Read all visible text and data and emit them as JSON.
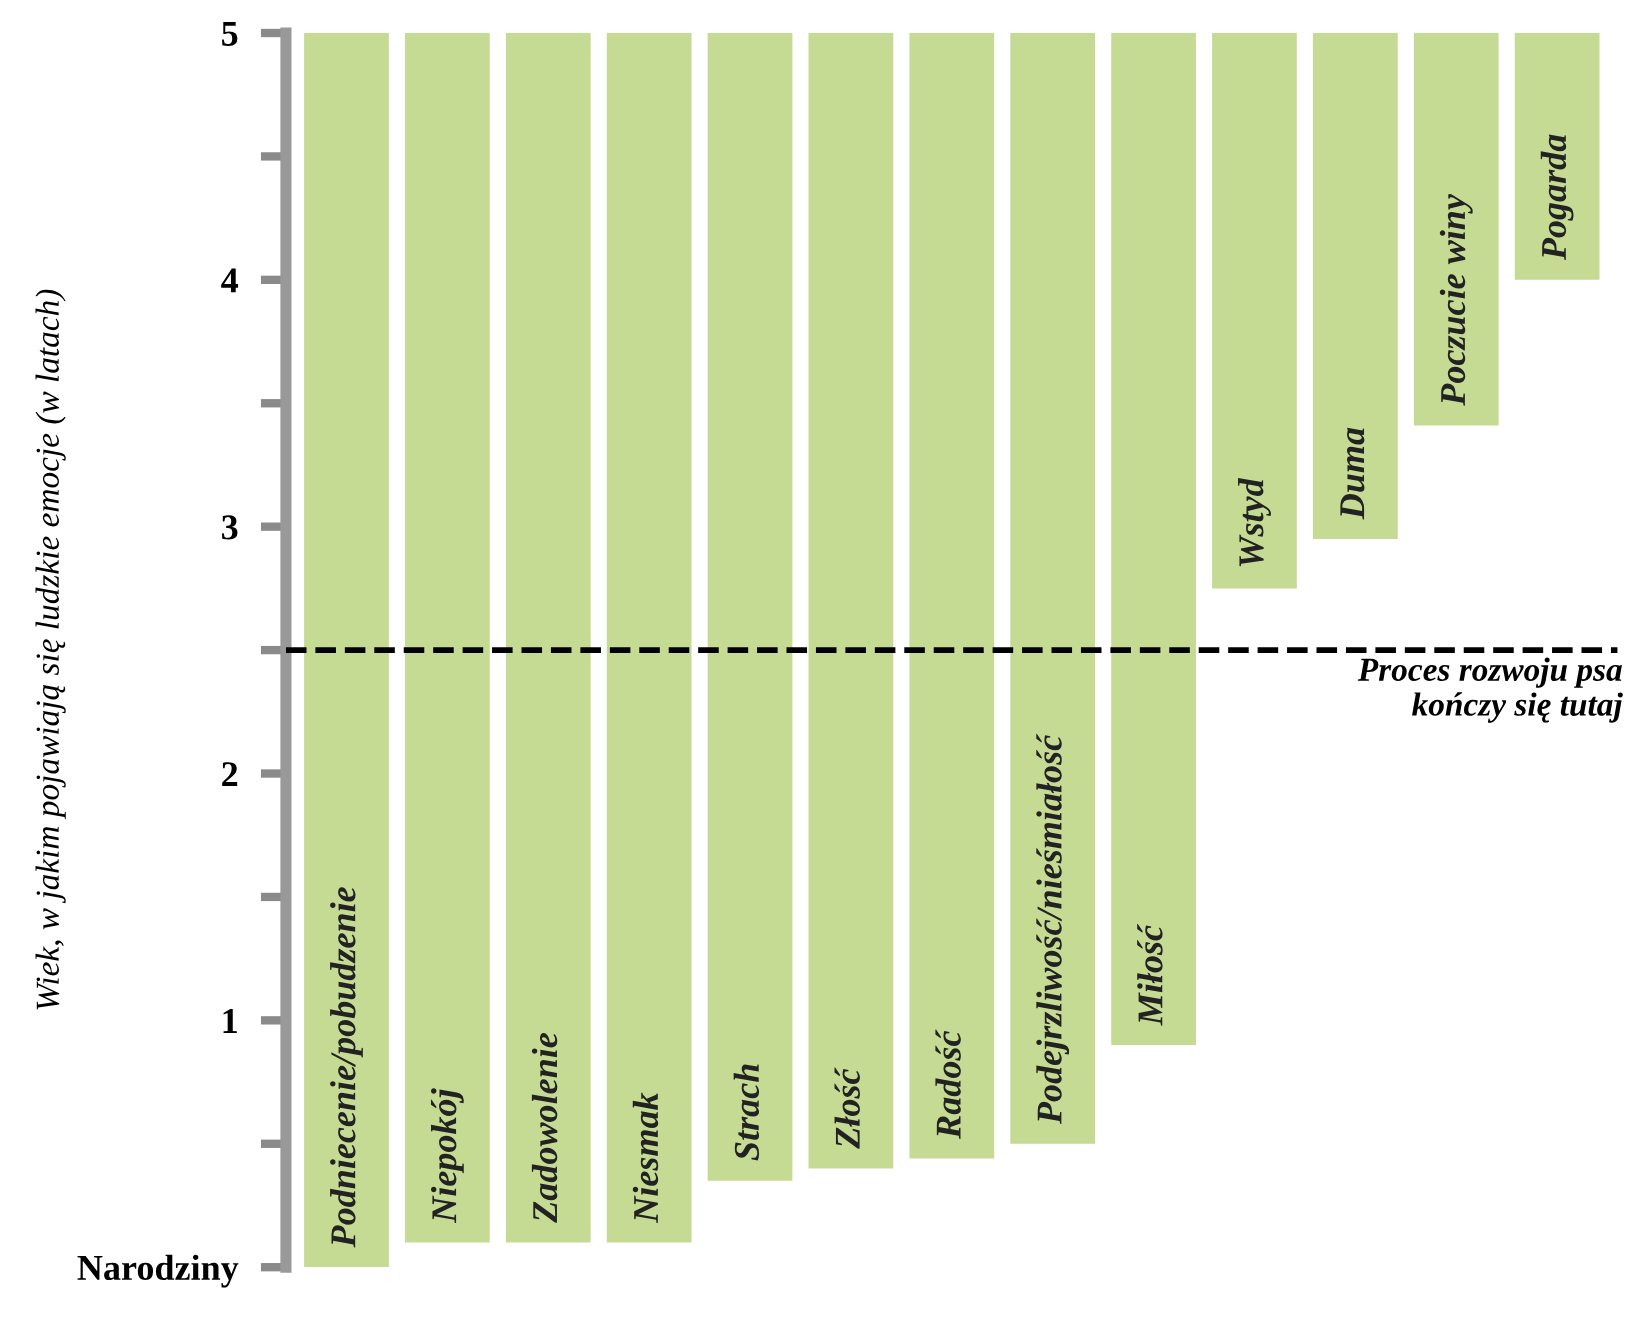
{
  "chart_data": {
    "type": "bar",
    "ylabel": "Wiek, w jakim pojawiają się ludzkie emocje (w latach)",
    "categories": [
      "Podniecenie/pobudzenie",
      "Niepokój",
      "Zadowolenie",
      "Niesmak",
      "Strach",
      "Złość",
      "Radość",
      "Podejrzliwość/nieśmiałość",
      "Miłość",
      "Wstyd",
      "Duma",
      "Poczucie winy",
      "Pogarda"
    ],
    "base": [
      0,
      0.1,
      0.1,
      0.1,
      0.35,
      0.4,
      0.44,
      0.5,
      0.9,
      2.75,
      2.95,
      3.41,
      4
    ],
    "values": [
      5,
      4.9,
      4.9,
      4.9,
      4.65,
      4.6,
      4.56,
      4.5,
      4.1,
      2.25,
      2.05,
      1.59,
      1
    ],
    "color": "#c5da93",
    "ylim": [
      0,
      5
    ],
    "yticks": [
      {
        "value": 0,
        "label": "Narodziny"
      },
      {
        "value": 0.5,
        "label": null
      },
      1,
      {
        "value": 1.5,
        "label": null
      },
      2,
      {
        "value": 2.5,
        "label": null
      },
      3,
      {
        "value": 3.5,
        "label": null
      },
      4,
      {
        "value": 4.5,
        "label": null
      },
      5
    ],
    "ref_lines": [
      {
        "axis": "y",
        "value": 2.5,
        "label": "Proces rozwoju psa\nkończy się tutaj",
        "color": "#000000",
        "line_style": "dashed"
      }
    ],
    "grid": false,
    "legend": false
  }
}
